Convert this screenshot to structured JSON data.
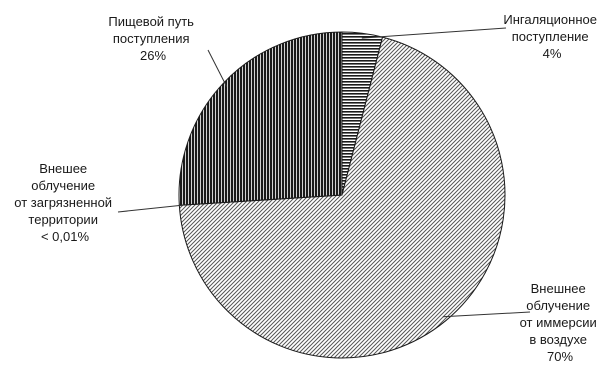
{
  "chart_data": {
    "type": "pie",
    "title": "",
    "slices": [
      {
        "key": "inhal",
        "label_lines": [
          "Ингаляционное",
          "поступление",
          "4%"
        ],
        "value": 4,
        "pattern": "hstripe"
      },
      {
        "key": "immers",
        "label_lines": [
          "Внешнее",
          "облучение",
          "от иммерсии",
          "в воздухе",
          "70%"
        ],
        "value": 70,
        "pattern": "diag"
      },
      {
        "key": "terr",
        "label_lines": [
          "Внешее",
          "облучение",
          "от загрязненной",
          "территории",
          "< 0,01%"
        ],
        "value": 0.01,
        "pattern": "none"
      },
      {
        "key": "food",
        "label_lines": [
          "Пищевой путь",
          "поступления",
          "26%"
        ],
        "value": 26,
        "pattern": "vstripe"
      }
    ],
    "start_angle_deg": 0,
    "direction": "clockwise",
    "legend": "none"
  },
  "colors": {
    "stroke": "#1a1a1a",
    "background": "#ffffff",
    "leader": "#333333"
  }
}
